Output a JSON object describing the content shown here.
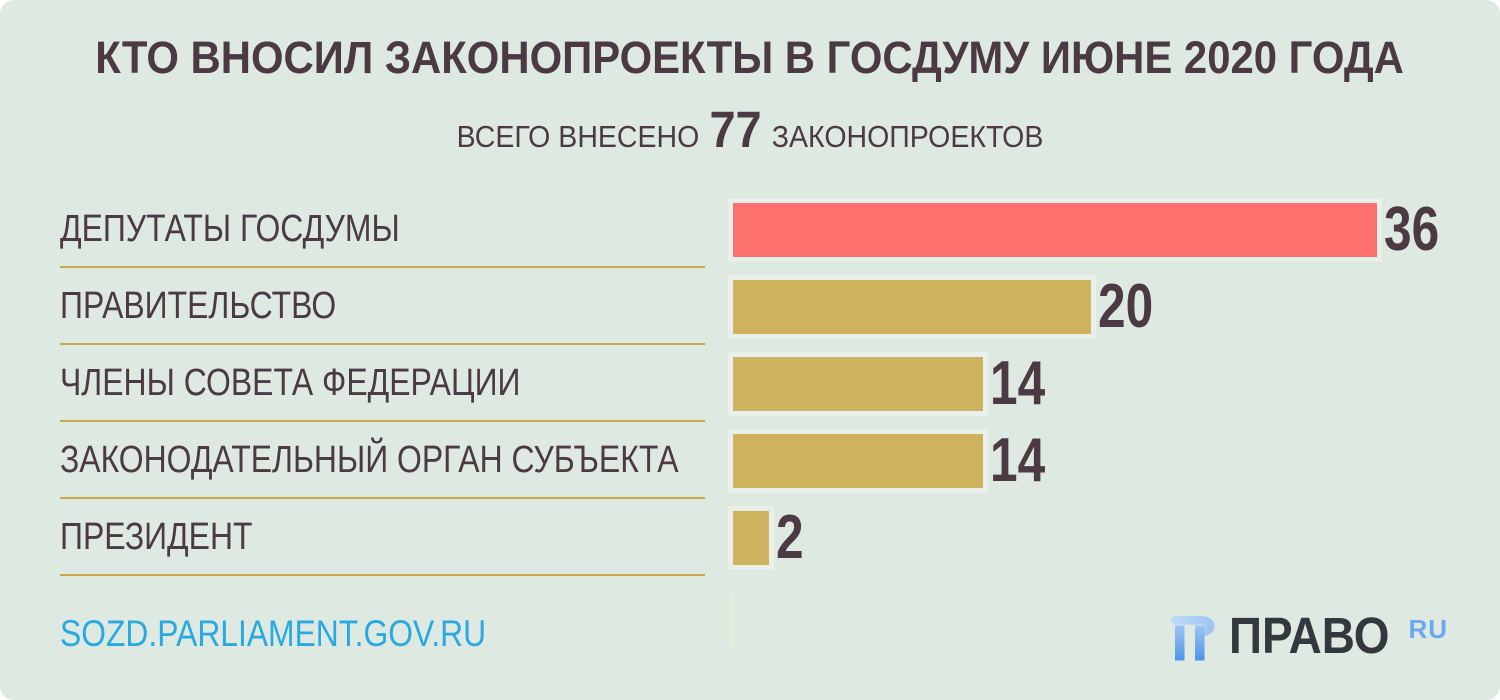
{
  "title": "КТО ВНОСИЛ ЗАКОНОПРОЕКТЫ В ГОСДУМУ ИЮНЕ 2020 ГОДА",
  "subtitle": {
    "prefix": "ВСЕГО ВНЕСЕНО",
    "total": "77",
    "suffix": "ЗАКОНОПРОЕКТОВ"
  },
  "chart_data": {
    "type": "bar",
    "orientation": "horizontal",
    "title": "КТО ВНОСИЛ ЗАКОНОПРОЕКТЫ В ГОСДУМУ ИЮНЕ 2020 ГОДА",
    "subtitle": "ВСЕГО ВНЕСЕНО 77 ЗАКОНОПРОЕКТОВ",
    "total_bills": 77,
    "categories": [
      "ДЕПУТАТЫ ГОСДУМЫ",
      "ПРАВИТЕЛЬСТВО",
      "ЧЛЕНЫ СОВЕТА ФЕДЕРАЦИИ",
      "ЗАКОНОДАТЕЛЬНЫЙ ОРГАН СУБЪЕКТА",
      "ПРЕЗИДЕНТ"
    ],
    "values": [
      36,
      20,
      14,
      14,
      2
    ],
    "bar_colors": [
      "#fc706e",
      "#cfb25e",
      "#cfb25e",
      "#cfb25e",
      "#cfb25e"
    ],
    "value_labels_shown": true,
    "xlim": [
      0,
      36
    ],
    "grid": false,
    "legend": false
  },
  "footer": {
    "source_url": "SOZD.PARLIAMENT.GOV.RU",
    "logo": {
      "icon": "pravo-monogram-icon",
      "brand": "ПРАВО",
      "tld": "RU"
    }
  },
  "colors": {
    "background": "#dee9e2",
    "text_dark": "#4b3a43",
    "bar_red": "#fc706e",
    "bar_gold": "#cfb25e",
    "divider_gold": "#c9a74b",
    "url_blue": "#29a9e1",
    "logo_text": "#34373e",
    "logo_blue": "#68a9f0"
  }
}
